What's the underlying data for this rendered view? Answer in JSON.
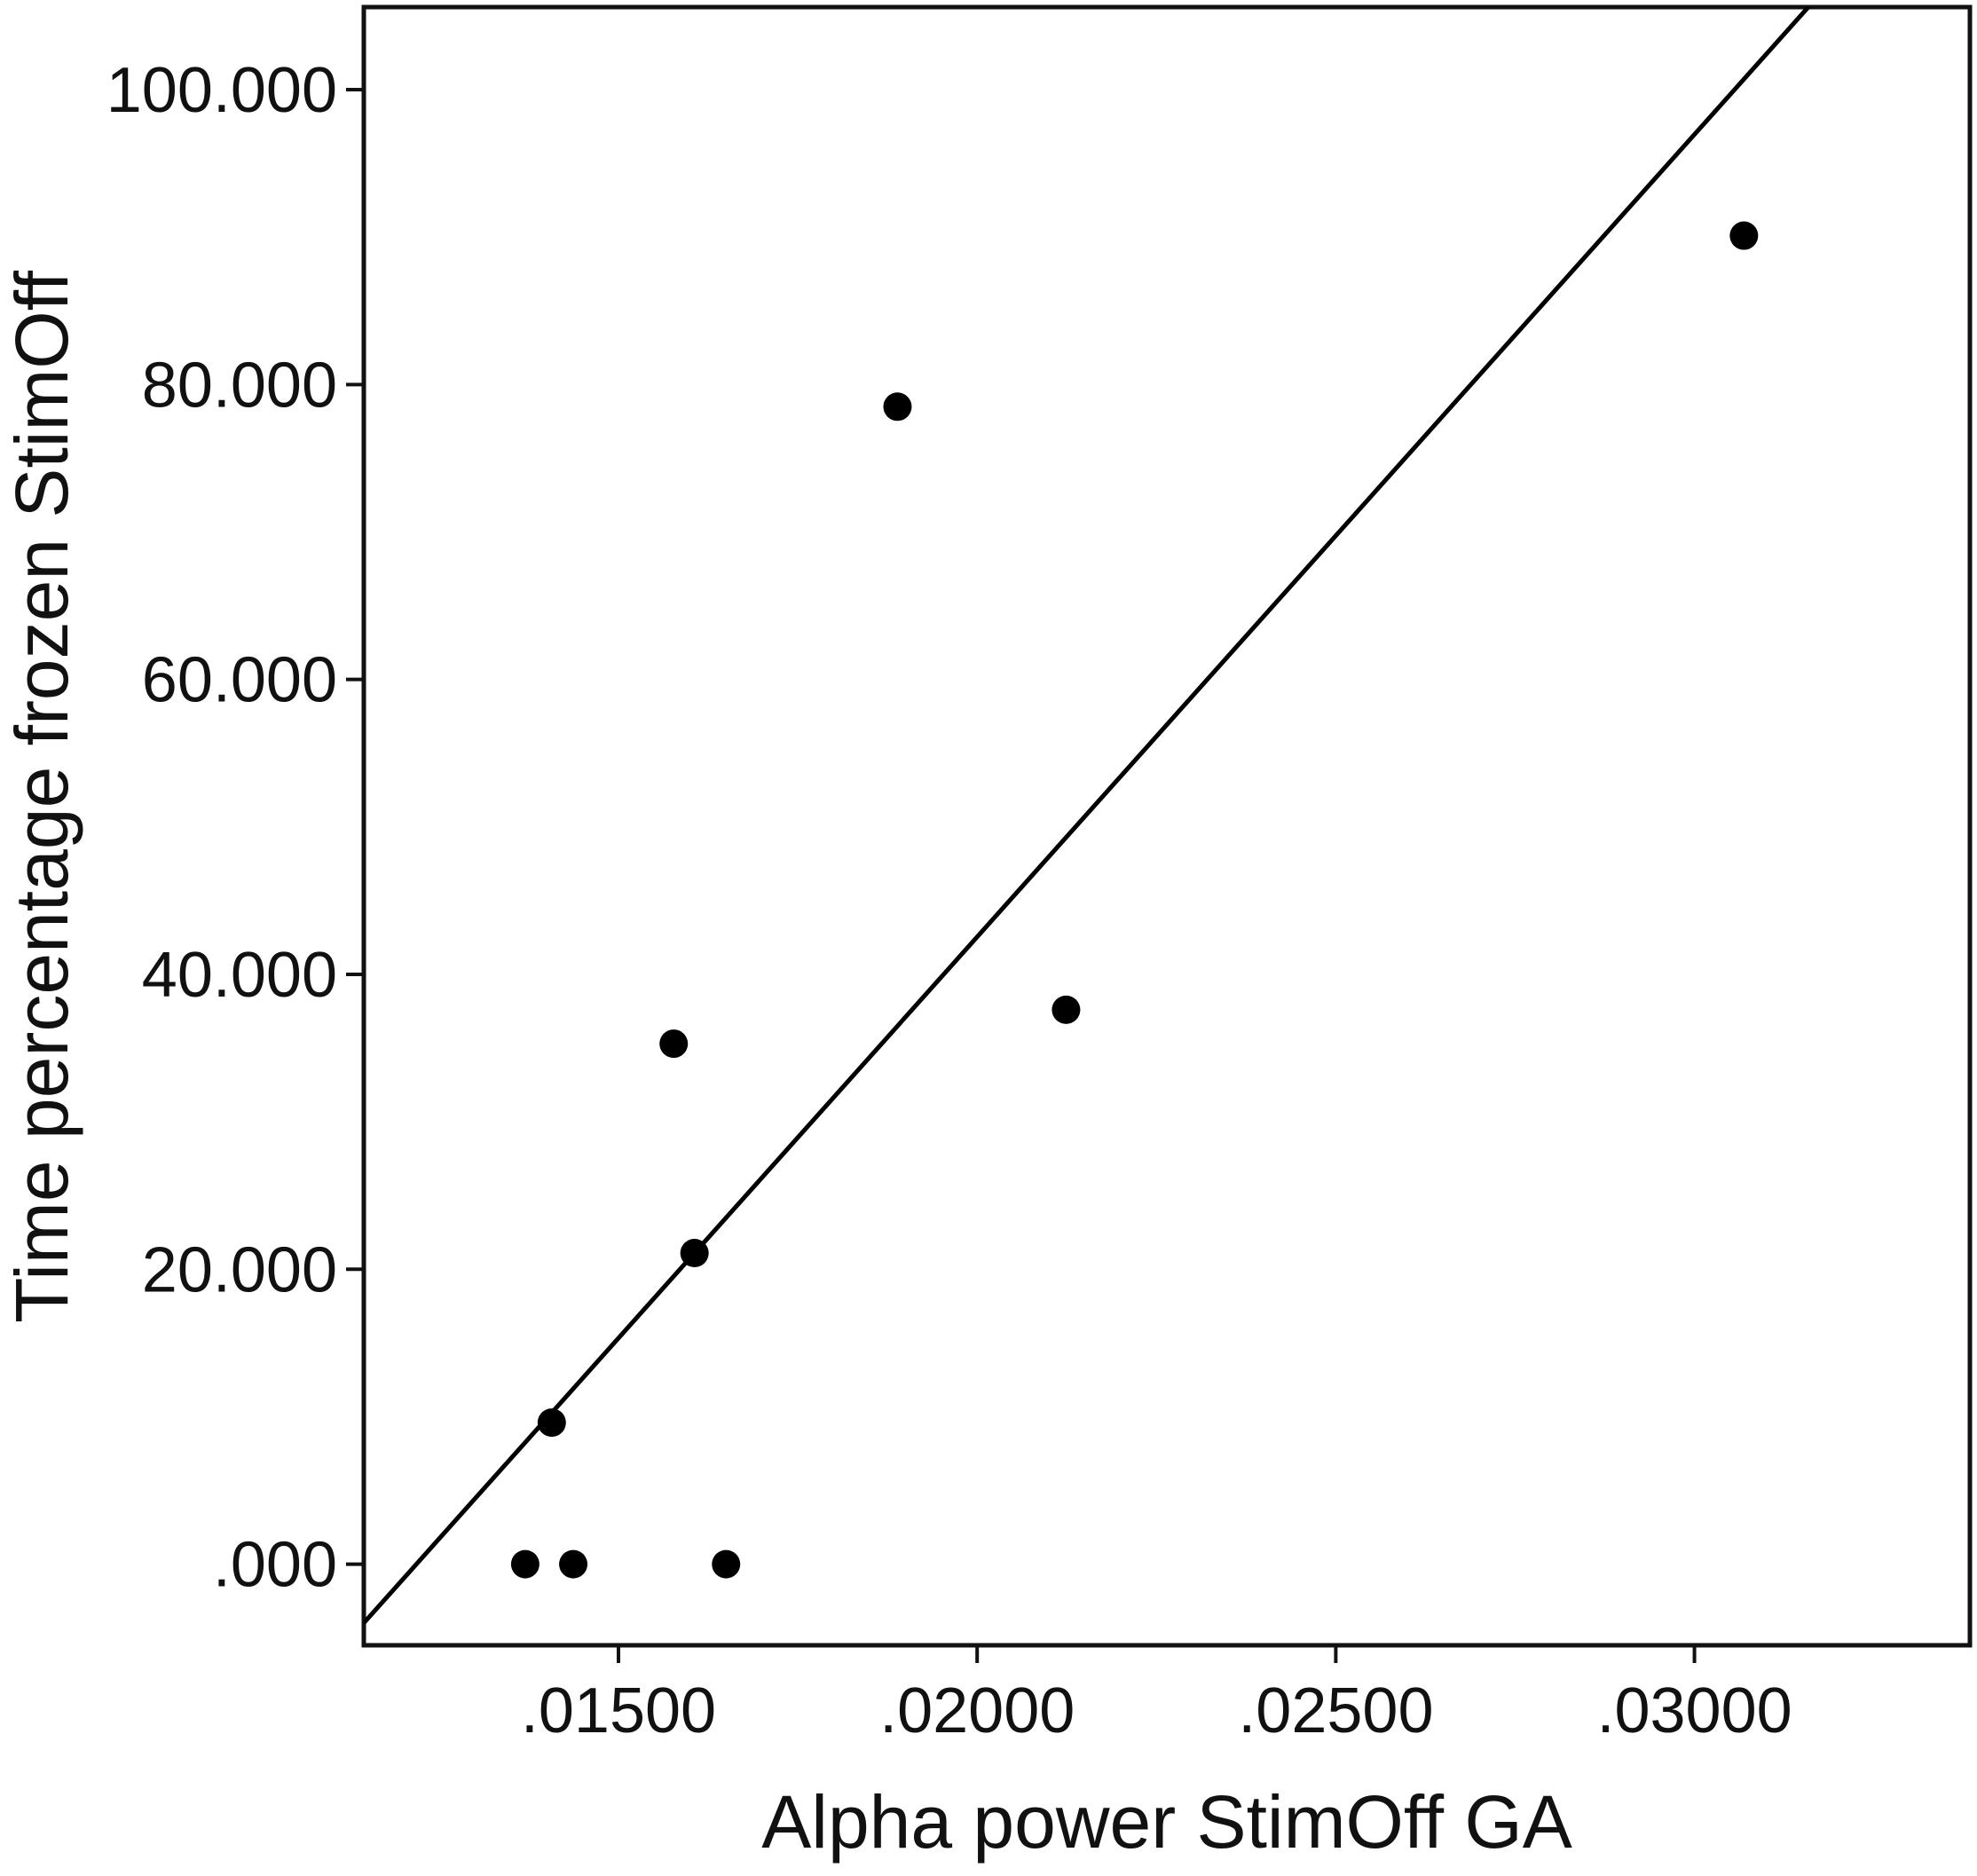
{
  "chart_data": {
    "type": "scatter",
    "title": "",
    "xlabel": "Alpha power StimOff GA",
    "ylabel": "Time percentage frozen StimOff",
    "x_ticks": [
      {
        "value": 0.015,
        "label": ".01500"
      },
      {
        "value": 0.02,
        "label": ".02000"
      },
      {
        "value": 0.025,
        "label": ".02500"
      },
      {
        "value": 0.03,
        "label": ".03000"
      }
    ],
    "y_ticks": [
      {
        "value": 0,
        "label": ".000"
      },
      {
        "value": 20,
        "label": "20.000"
      },
      {
        "value": 40,
        "label": "40.000"
      },
      {
        "value": 60,
        "label": "60.000"
      },
      {
        "value": 80,
        "label": "80.000"
      },
      {
        "value": 100,
        "label": "100.000"
      }
    ],
    "xlim": [
      0.01145,
      0.03384
    ],
    "ylim": [
      -5.5,
      105.6
    ],
    "grid": false,
    "legend": "none",
    "points": [
      {
        "x": 0.0137,
        "y": 0
      },
      {
        "x": 0.01437,
        "y": 0
      },
      {
        "x": 0.0165,
        "y": 0
      },
      {
        "x": 0.01407,
        "y": 9.6
      },
      {
        "x": 0.01577,
        "y": 35.3
      },
      {
        "x": 0.01606,
        "y": 21.1
      },
      {
        "x": 0.01889,
        "y": 78.5
      },
      {
        "x": 0.02124,
        "y": 37.6
      },
      {
        "x": 0.03069,
        "y": 90.1
      }
    ],
    "fit_line": {
      "slope": 5442.0,
      "intercept": -66.3
    },
    "colors": {
      "marker": "#000000",
      "line": "#000000",
      "frame": "#111111"
    }
  }
}
